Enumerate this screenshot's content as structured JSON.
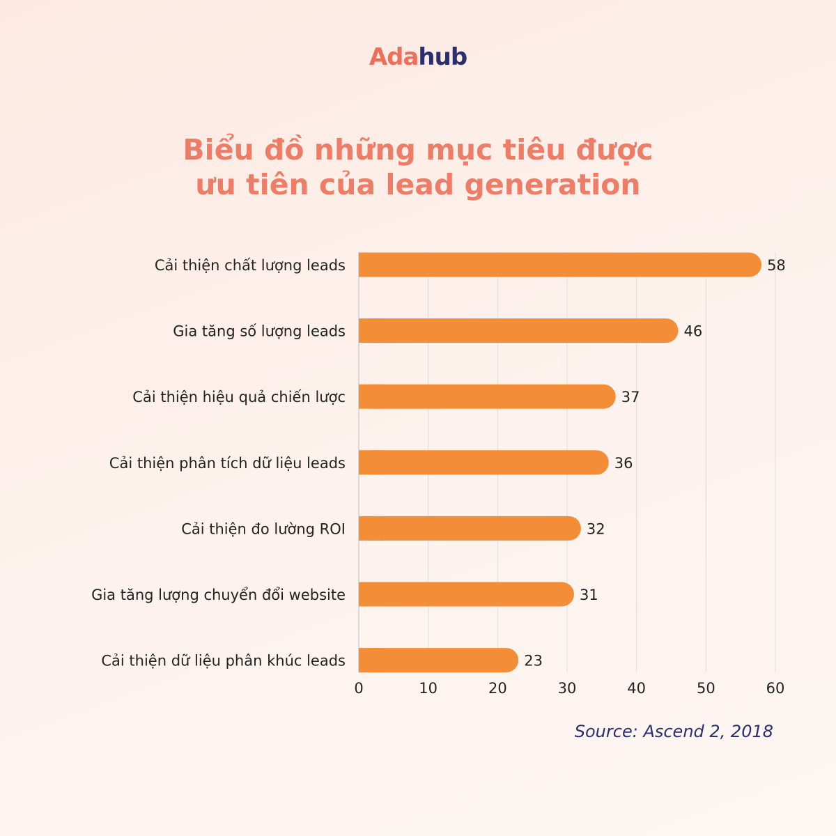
{
  "logo": {
    "part1": "Ada",
    "part2": "hub"
  },
  "title": {
    "line1": "Biểu đồ những mục tiêu được",
    "line2": "ưu tiên của lead generation"
  },
  "source": "Source: Ascend 2, 2018",
  "colors": {
    "bar": "#f38d38",
    "title": "#ec7d68",
    "grid": "#dcdcdc",
    "source": "#2b2f6b"
  },
  "chart_data": {
    "type": "bar",
    "orientation": "horizontal",
    "categories": [
      "Cải thiện chất lượng leads",
      "Gia tăng số lượng leads",
      "Cải thiện hiệu quả chiến lược",
      "Cải thiện phân tích dữ liệu leads",
      "Cải thiện đo lường ROI",
      "Gia tăng lượng chuyển đổi website",
      "Cải thiện dữ liệu phân khúc leads"
    ],
    "values": [
      58,
      46,
      37,
      36,
      32,
      31,
      23
    ],
    "xlim": [
      0,
      60
    ],
    "ticks": [
      0,
      10,
      20,
      30,
      40,
      50,
      60
    ],
    "grid": true,
    "legend": "none"
  }
}
